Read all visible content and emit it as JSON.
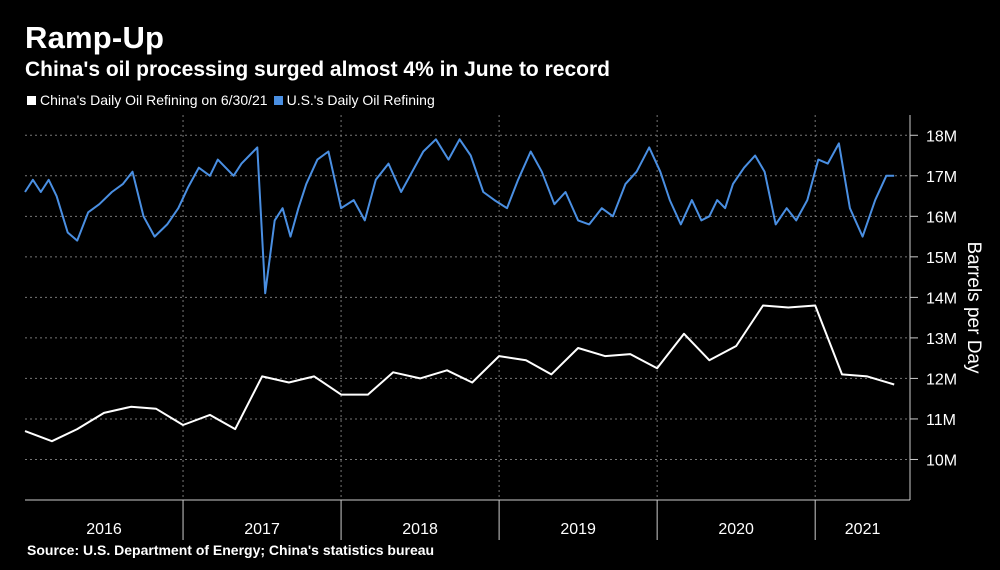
{
  "title": "Ramp-Up",
  "subtitle": "China's oil processing surged almost 4% in June to record",
  "source": "Source: U.S. Department of Energy; China's statistics bureau",
  "chart_data": {
    "type": "line",
    "ylabel": "Barrels per Day",
    "ylim": [
      9,
      18.5
    ],
    "y_ticks": [
      10,
      11,
      12,
      13,
      14,
      15,
      16,
      17,
      18
    ],
    "y_tick_labels": [
      "10M",
      "11M",
      "12M",
      "13M",
      "14M",
      "15M",
      "16M",
      "17M",
      "18M"
    ],
    "x_tick_labels": [
      "2016",
      "2017",
      "2018",
      "2019",
      "2020",
      "2021"
    ],
    "x_range": [
      2016.0,
      2021.6
    ],
    "y_axis_position": "right",
    "grid": "dotted",
    "legend_position": "top-left",
    "series": [
      {
        "name": "China's Daily Oil Refining on 6/30/21",
        "color": "#ffffff",
        "x": [
          2016.0,
          2016.17,
          2016.33,
          2016.5,
          2016.67,
          2016.83,
          2017.0,
          2017.17,
          2017.33,
          2017.5,
          2017.67,
          2017.83,
          2018.0,
          2018.17,
          2018.33,
          2018.5,
          2018.67,
          2018.83,
          2019.0,
          2019.17,
          2019.33,
          2019.5,
          2019.67,
          2019.83,
          2020.0,
          2020.17,
          2020.33,
          2020.5,
          2020.67,
          2020.83,
          2021.0,
          2021.17,
          2021.33,
          2021.5
        ],
        "y": [
          10.7,
          10.45,
          10.75,
          11.15,
          11.3,
          11.25,
          10.85,
          11.1,
          10.75,
          12.05,
          11.9,
          12.05,
          11.6,
          11.6,
          12.15,
          12.0,
          12.2,
          11.9,
          12.55,
          12.45,
          12.1,
          12.75,
          12.55,
          12.6,
          12.25,
          13.1,
          12.45,
          12.8,
          13.8,
          13.75,
          13.8,
          12.1,
          12.05,
          11.85
        ]
      },
      {
        "name": "U.S.'s Daily Oil Refining",
        "color": "#4a8fe2",
        "x": [
          2016.0,
          2016.05,
          2016.1,
          2016.15,
          2016.2,
          2016.27,
          2016.33,
          2016.4,
          2016.47,
          2016.55,
          2016.62,
          2016.68,
          2016.75,
          2016.82,
          2016.9,
          2016.97,
          2017.03,
          2017.1,
          2017.17,
          2017.22,
          2017.27,
          2017.32,
          2017.37,
          2017.42,
          2017.47,
          2017.52,
          2017.58,
          2017.63,
          2017.68,
          2017.73,
          2017.78,
          2017.85,
          2017.92,
          2018.0,
          2018.08,
          2018.15,
          2018.22,
          2018.3,
          2018.38,
          2018.45,
          2018.52,
          2018.6,
          2018.68,
          2018.75,
          2018.82,
          2018.9,
          2018.97,
          2019.05,
          2019.12,
          2019.2,
          2019.27,
          2019.35,
          2019.42,
          2019.5,
          2019.57,
          2019.65,
          2019.72,
          2019.8,
          2019.87,
          2019.95,
          2020.02,
          2020.08,
          2020.15,
          2020.22,
          2020.28,
          2020.33,
          2020.38,
          2020.43,
          2020.48,
          2020.55,
          2020.62,
          2020.68,
          2020.75,
          2020.82,
          2020.88,
          2020.95,
          2021.02,
          2021.08,
          2021.15,
          2021.22,
          2021.3,
          2021.38,
          2021.45,
          2021.5
        ],
        "y": [
          16.6,
          16.9,
          16.6,
          16.9,
          16.5,
          15.6,
          15.4,
          16.1,
          16.3,
          16.6,
          16.8,
          17.1,
          16.0,
          15.5,
          15.8,
          16.2,
          16.7,
          17.2,
          17.0,
          17.4,
          17.2,
          17.0,
          17.3,
          17.5,
          17.7,
          14.1,
          15.9,
          16.2,
          15.5,
          16.2,
          16.8,
          17.4,
          17.6,
          16.2,
          16.4,
          15.9,
          16.9,
          17.3,
          16.6,
          17.1,
          17.6,
          17.9,
          17.4,
          17.9,
          17.5,
          16.6,
          16.4,
          16.2,
          16.9,
          17.6,
          17.1,
          16.3,
          16.6,
          15.9,
          15.8,
          16.2,
          16.0,
          16.8,
          17.1,
          17.7,
          17.1,
          16.4,
          15.8,
          16.4,
          15.9,
          16.0,
          16.4,
          16.2,
          16.8,
          17.2,
          17.5,
          17.1,
          15.8,
          16.2,
          15.9,
          16.4,
          17.4,
          17.3,
          17.8,
          16.2,
          15.5,
          16.4,
          17.0,
          17.0
        ]
      }
    ]
  }
}
